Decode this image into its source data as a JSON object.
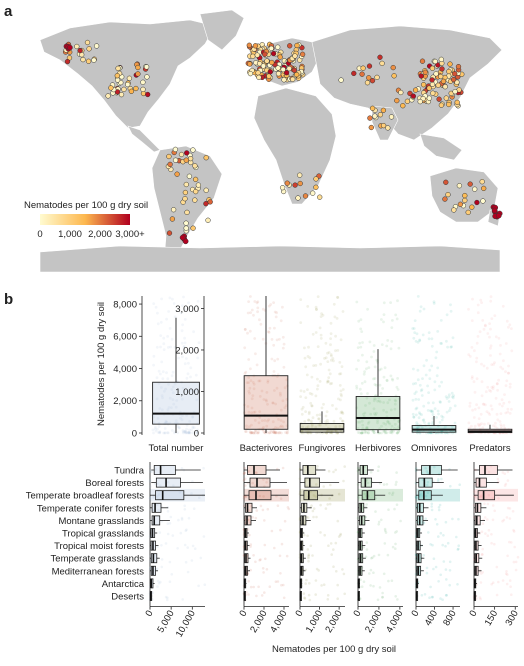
{
  "figure": {
    "panel_a_label": "a",
    "panel_b_label": "b"
  },
  "colors": {
    "land": "#c4c4c4",
    "ocean": "#ffffff",
    "scale_low": "#fffbd0",
    "scale_mid": "#fdb84f",
    "scale_high": "#b1001f",
    "total": "#9fb6d6",
    "bacterivores": "#c7664d",
    "fungivores": "#8a8a3a",
    "herbivores": "#55a35a",
    "omnivores": "#2aaaa0",
    "predators": "#f08c8c"
  },
  "map": {
    "legend_title": "Nematodes per 100 g dry soil",
    "legend_ticks": [
      "0",
      "1,000",
      "2,000",
      "3,000+"
    ],
    "legend_tick_values": [
      0,
      1000,
      2000,
      3000
    ]
  },
  "chart_data": [
    {
      "type": "box",
      "panel": "b-top-left",
      "categories": [
        "Total number"
      ],
      "ylabel": "Nematodes per 100 g dry soil",
      "ylim": [
        0,
        8500
      ],
      "yticks": [
        0,
        2000,
        4000,
        6000,
        8000
      ],
      "ytick_labels": [
        "0",
        "2,000",
        "4,000",
        "6,000",
        "8,000"
      ],
      "boxes": [
        {
          "name": "Total number",
          "color_key": "total",
          "q1": 550,
          "median": 1200,
          "q3": 3150,
          "whisker_low": 0,
          "whisker_high": 7150
        }
      ]
    },
    {
      "type": "box",
      "panel": "b-top-right",
      "categories": [
        "Bacterivores",
        "Fungivores",
        "Herbivores",
        "Omnivores",
        "Predators"
      ],
      "ylim": [
        0,
        3300
      ],
      "yticks": [
        0,
        1000,
        2000,
        3000
      ],
      "ytick_labels": [
        "0",
        "1,000",
        "2,000",
        "3,000"
      ],
      "boxes": [
        {
          "name": "Bacterivores",
          "color_key": "bacterivores",
          "q1": 90,
          "median": 420,
          "q3": 1380,
          "whisker_low": 0,
          "whisker_high": 3300
        },
        {
          "name": "Fungivores",
          "color_key": "fungivores",
          "q1": 20,
          "median": 90,
          "q3": 230,
          "whisker_low": 0,
          "whisker_high": 520
        },
        {
          "name": "Herbivores",
          "color_key": "herbivores",
          "q1": 80,
          "median": 360,
          "q3": 880,
          "whisker_low": 0,
          "whisker_high": 2020
        },
        {
          "name": "Omnivores",
          "color_key": "omnivores",
          "q1": 20,
          "median": 80,
          "q3": 180,
          "whisker_low": 0,
          "whisker_high": 410
        },
        {
          "name": "Predators",
          "color_key": "predators",
          "q1": 10,
          "median": 40,
          "q3": 90,
          "whisker_low": 0,
          "whisker_high": 200
        }
      ]
    },
    {
      "type": "box",
      "panel": "b-bottom",
      "orientation": "horizontal",
      "xlabel": "Nematodes per 100 g dry soil",
      "categories": [
        "Tundra",
        "Boreal forests",
        "Temperate broadleaf forests",
        "Temperate conifer forests",
        "Montane grasslands",
        "Tropical grasslands",
        "Tropical moist forests",
        "Temperate grasslands",
        "Mediterranean forests",
        "Antarctica",
        "Deserts"
      ],
      "highlight_row": "Temperate broadleaf forests",
      "panels": [
        {
          "name": "Total number",
          "color_key": "total",
          "xlim": [
            0,
            13000
          ],
          "xticks": [
            0,
            5000,
            10000
          ],
          "xtick_labels": [
            "0",
            "5,000",
            "10,000"
          ],
          "rows": [
            {
              "q1": 1000,
              "median": 2500,
              "q3": 6000,
              "whisker_low": 300,
              "whisker_high": 12000
            },
            {
              "q1": 1500,
              "median": 3800,
              "q3": 7200,
              "whisker_low": 300,
              "whisker_high": 12500
            },
            {
              "q1": 1300,
              "median": 3000,
              "q3": 8000,
              "whisker_low": 0,
              "whisker_high": 13000
            },
            {
              "q1": 500,
              "median": 1200,
              "q3": 2600,
              "whisker_low": 0,
              "whisker_high": 4300
            },
            {
              "q1": 500,
              "median": 1000,
              "q3": 2300,
              "whisker_low": 0,
              "whisker_high": 4700
            },
            {
              "q1": 200,
              "median": 600,
              "q3": 1100,
              "whisker_low": 0,
              "whisker_high": 1700
            },
            {
              "q1": 250,
              "median": 700,
              "q3": 1300,
              "whisker_low": 0,
              "whisker_high": 2000
            },
            {
              "q1": 300,
              "median": 800,
              "q3": 1600,
              "whisker_low": 0,
              "whisker_high": 2300
            },
            {
              "q1": 300,
              "median": 700,
              "q3": 1300,
              "whisker_low": 0,
              "whisker_high": 1900
            },
            {
              "q1": 100,
              "median": 300,
              "q3": 700,
              "whisker_low": 0,
              "whisker_high": 1100
            },
            {
              "q1": 50,
              "median": 150,
              "q3": 300,
              "whisker_low": 0,
              "whisker_high": 500
            }
          ]
        },
        {
          "name": "Bacterivores",
          "color_key": "bacterivores",
          "xlim": [
            0,
            4500
          ],
          "xticks": [
            0,
            2000,
            4000
          ],
          "xtick_labels": [
            "0",
            "2,000",
            "4,000"
          ],
          "rows": [
            {
              "q1": 350,
              "median": 1000,
              "q3": 2200,
              "whisker_low": 0,
              "whisker_high": 3600
            },
            {
              "q1": 600,
              "median": 1300,
              "q3": 2600,
              "whisker_low": 0,
              "whisker_high": 4300
            },
            {
              "q1": 500,
              "median": 1200,
              "q3": 2700,
              "whisker_low": 0,
              "whisker_high": 4400
            },
            {
              "q1": 150,
              "median": 350,
              "q3": 800,
              "whisker_low": 0,
              "whisker_high": 1300
            },
            {
              "q1": 100,
              "median": 300,
              "q3": 700,
              "whisker_low": 0,
              "whisker_high": 1200
            },
            {
              "q1": 50,
              "median": 150,
              "q3": 300,
              "whisker_low": 0,
              "whisker_high": 500
            },
            {
              "q1": 50,
              "median": 160,
              "q3": 330,
              "whisker_low": 0,
              "whisker_high": 550
            },
            {
              "q1": 60,
              "median": 200,
              "q3": 400,
              "whisker_low": 0,
              "whisker_high": 650
            },
            {
              "q1": 60,
              "median": 180,
              "q3": 350,
              "whisker_low": 0,
              "whisker_high": 600
            },
            {
              "q1": 20,
              "median": 60,
              "q3": 140,
              "whisker_low": 0,
              "whisker_high": 250
            },
            {
              "q1": 10,
              "median": 30,
              "q3": 70,
              "whisker_low": 0,
              "whisker_high": 120
            }
          ]
        },
        {
          "name": "Fungivores",
          "color_key": "fungivores",
          "xlim": [
            0,
            2300
          ],
          "xticks": [
            0,
            1000,
            2000
          ],
          "xtick_labels": [
            "0",
            "1,000",
            "2,000"
          ],
          "rows": [
            {
              "q1": 150,
              "median": 400,
              "q3": 800,
              "whisker_low": 0,
              "whisker_high": 1300
            },
            {
              "q1": 250,
              "median": 500,
              "q3": 1000,
              "whisker_low": 0,
              "whisker_high": 2000
            },
            {
              "q1": 200,
              "median": 450,
              "q3": 900,
              "whisker_low": 0,
              "whisker_high": 1700
            },
            {
              "q1": 80,
              "median": 200,
              "q3": 350,
              "whisker_low": 0,
              "whisker_high": 600
            },
            {
              "q1": 50,
              "median": 150,
              "q3": 300,
              "whisker_low": 0,
              "whisker_high": 550
            },
            {
              "q1": 20,
              "median": 60,
              "q3": 130,
              "whisker_low": 0,
              "whisker_high": 220
            },
            {
              "q1": 20,
              "median": 60,
              "q3": 140,
              "whisker_low": 0,
              "whisker_high": 240
            },
            {
              "q1": 30,
              "median": 80,
              "q3": 170,
              "whisker_low": 0,
              "whisker_high": 300
            },
            {
              "q1": 30,
              "median": 80,
              "q3": 160,
              "whisker_low": 0,
              "whisker_high": 280
            },
            {
              "q1": 10,
              "median": 30,
              "q3": 60,
              "whisker_low": 0,
              "whisker_high": 110
            },
            {
              "q1": 5,
              "median": 15,
              "q3": 35,
              "whisker_low": 0,
              "whisker_high": 60
            }
          ]
        },
        {
          "name": "Herbivores",
          "color_key": "herbivores",
          "xlim": [
            0,
            4300
          ],
          "xticks": [
            0,
            2000,
            4000
          ],
          "xtick_labels": [
            "0",
            "2,000",
            "4,000"
          ],
          "rows": [
            {
              "q1": 200,
              "median": 500,
              "q3": 900,
              "whisker_low": 0,
              "whisker_high": 1500
            },
            {
              "q1": 300,
              "median": 700,
              "q3": 1300,
              "whisker_low": 0,
              "whisker_high": 2300
            },
            {
              "q1": 400,
              "median": 900,
              "q3": 1600,
              "whisker_low": 0,
              "whisker_high": 2600
            },
            {
              "q1": 100,
              "median": 300,
              "q3": 550,
              "whisker_low": 0,
              "whisker_high": 900
            },
            {
              "q1": 150,
              "median": 350,
              "q3": 650,
              "whisker_low": 0,
              "whisker_high": 1100
            },
            {
              "q1": 80,
              "median": 200,
              "q3": 380,
              "whisker_low": 0,
              "whisker_high": 650
            },
            {
              "q1": 80,
              "median": 220,
              "q3": 400,
              "whisker_low": 0,
              "whisker_high": 700
            },
            {
              "q1": 100,
              "median": 250,
              "q3": 450,
              "whisker_low": 0,
              "whisker_high": 750
            },
            {
              "q1": 80,
              "median": 200,
              "q3": 380,
              "whisker_low": 0,
              "whisker_high": 650
            },
            {
              "q1": 10,
              "median": 40,
              "q3": 90,
              "whisker_low": 0,
              "whisker_high": 160
            },
            {
              "q1": 10,
              "median": 30,
              "q3": 70,
              "whisker_low": 0,
              "whisker_high": 120
            }
          ]
        },
        {
          "name": "Omnivores",
          "color_key": "omnivores",
          "xlim": [
            0,
            950
          ],
          "xticks": [
            0,
            400,
            800
          ],
          "xtick_labels": [
            "0",
            "400",
            "800"
          ],
          "rows": [
            {
              "q1": 120,
              "median": 300,
              "q3": 550,
              "whisker_low": 0,
              "whisker_high": 900
            },
            {
              "q1": 60,
              "median": 180,
              "q3": 350,
              "whisker_low": 0,
              "whisker_high": 600
            },
            {
              "q1": 60,
              "median": 170,
              "q3": 330,
              "whisker_low": 0,
              "whisker_high": 580
            },
            {
              "q1": 30,
              "median": 80,
              "q3": 160,
              "whisker_low": 0,
              "whisker_high": 270
            },
            {
              "q1": 30,
              "median": 80,
              "q3": 150,
              "whisker_low": 0,
              "whisker_high": 260
            },
            {
              "q1": 15,
              "median": 40,
              "q3": 80,
              "whisker_low": 0,
              "whisker_high": 130
            },
            {
              "q1": 15,
              "median": 45,
              "q3": 90,
              "whisker_low": 0,
              "whisker_high": 150
            },
            {
              "q1": 20,
              "median": 55,
              "q3": 110,
              "whisker_low": 0,
              "whisker_high": 180
            },
            {
              "q1": 20,
              "median": 50,
              "q3": 100,
              "whisker_low": 0,
              "whisker_high": 170
            },
            {
              "q1": 5,
              "median": 15,
              "q3": 35,
              "whisker_low": 0,
              "whisker_high": 60
            },
            {
              "q1": 3,
              "median": 10,
              "q3": 25,
              "whisker_low": 0,
              "whisker_high": 45
            }
          ]
        },
        {
          "name": "Predators",
          "color_key": "predators",
          "xlim": [
            0,
            320
          ],
          "xticks": [
            0,
            150,
            300
          ],
          "xtick_labels": [
            "0",
            "150",
            "300"
          ],
          "rows": [
            {
              "q1": 40,
              "median": 80,
              "q3": 170,
              "whisker_low": 0,
              "whisker_high": 280
            },
            {
              "q1": 15,
              "median": 40,
              "q3": 90,
              "whisker_low": 0,
              "whisker_high": 180
            },
            {
              "q1": 30,
              "median": 70,
              "q3": 150,
              "whisker_low": 0,
              "whisker_high": 290
            },
            {
              "q1": 10,
              "median": 25,
              "q3": 50,
              "whisker_low": 0,
              "whisker_high": 90
            },
            {
              "q1": 8,
              "median": 20,
              "q3": 45,
              "whisker_low": 0,
              "whisker_high": 80
            },
            {
              "q1": 5,
              "median": 12,
              "q3": 25,
              "whisker_low": 0,
              "whisker_high": 45
            },
            {
              "q1": 5,
              "median": 14,
              "q3": 30,
              "whisker_low": 0,
              "whisker_high": 55
            },
            {
              "q1": 6,
              "median": 16,
              "q3": 35,
              "whisker_low": 0,
              "whisker_high": 60
            },
            {
              "q1": 5,
              "median": 14,
              "q3": 30,
              "whisker_low": 0,
              "whisker_high": 55
            },
            {
              "q1": 2,
              "median": 5,
              "q3": 12,
              "whisker_low": 0,
              "whisker_high": 22
            },
            {
              "q1": 1,
              "median": 4,
              "q3": 10,
              "whisker_low": 0,
              "whisker_high": 18
            }
          ]
        }
      ]
    }
  ]
}
